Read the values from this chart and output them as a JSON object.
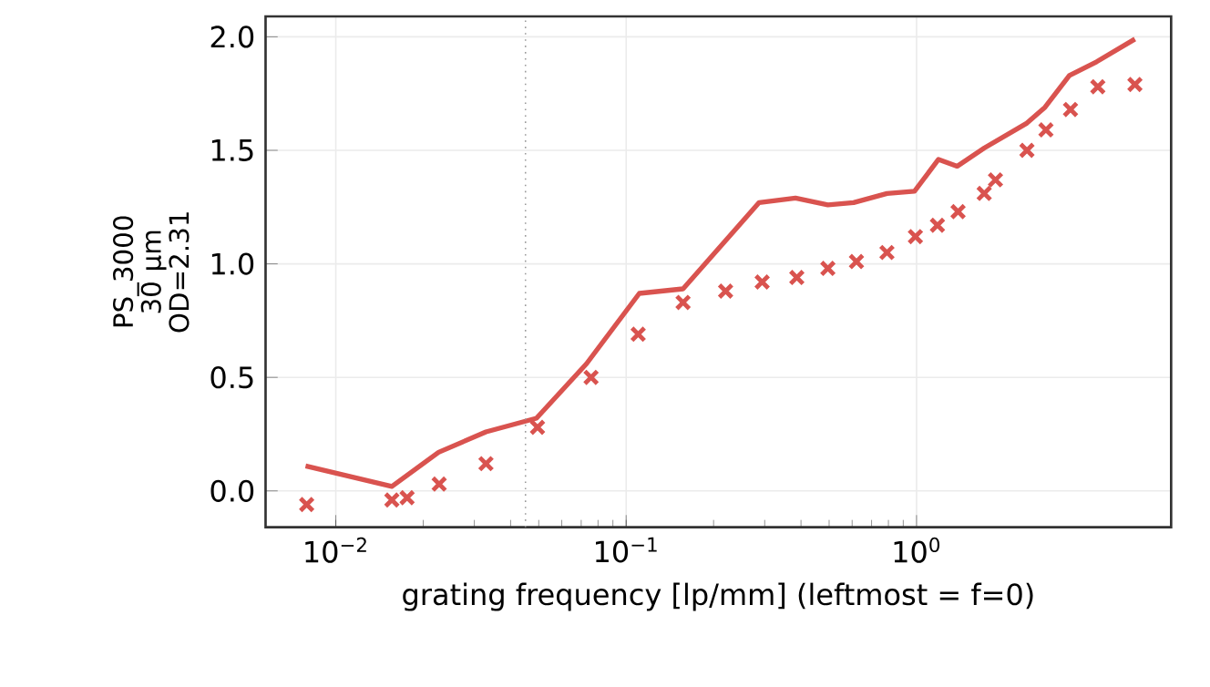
{
  "chart_data": {
    "type": "line",
    "xlabel": "grating frequency [lp/mm]  (leftmost = f=0)",
    "ylabel": "PS_3000 30 µm OD=2.31",
    "log": "x",
    "grid": true,
    "xlim": [
      0.00573,
      7.53
    ],
    "ylim": [
      -0.16,
      2.09
    ],
    "xticks": [
      {
        "value": 0.01,
        "label": "10$^{−2}$"
      },
      {
        "value": 0.1,
        "label": "10$^{−1}$"
      },
      {
        "value": 1,
        "label": "10$^{0}$"
      }
    ],
    "yticks": [
      {
        "value": 0,
        "label": "0.0"
      },
      {
        "value": 0.5,
        "label": "0.5"
      },
      {
        "value": 1,
        "label": "1.0"
      },
      {
        "value": 1.5,
        "label": "1.5"
      },
      {
        "value": 2,
        "label": "2.0"
      }
    ],
    "ref_lines": [
      {
        "axis": "x",
        "value": 0.045,
        "color": "#999999",
        "line_style": "dotted"
      }
    ],
    "series": [
      {
        "color": "#d9534f",
        "line_style": "solid",
        "marker": "none",
        "x": [
          0.00787,
          0.0156,
          0.0226,
          0.0329,
          0.0491,
          0.073,
          0.111,
          0.157,
          0.287,
          0.383,
          0.495,
          0.607,
          0.791,
          0.984,
          1.19,
          1.38,
          1.71,
          2.4,
          2.77,
          3.36,
          4.17,
          5.65
        ],
        "values": [
          0.11,
          0.02,
          0.17,
          0.26,
          0.32,
          0.56,
          0.87,
          0.89,
          1.27,
          1.29,
          1.26,
          1.27,
          1.31,
          1.32,
          1.46,
          1.43,
          1.51,
          1.62,
          1.69,
          1.83,
          1.89,
          1.99
        ]
      },
      {
        "type": "scatter",
        "color": "#d9534f",
        "marker": "cross",
        "x": [
          0.00794,
          0.0156,
          0.0176,
          0.0227,
          0.0329,
          0.0495,
          0.0757,
          0.11,
          0.157,
          0.22,
          0.294,
          0.387,
          0.495,
          0.621,
          0.791,
          0.991,
          1.18,
          1.39,
          1.71,
          1.87,
          2.4,
          2.79,
          3.39,
          4.21,
          5.65
        ],
        "values": [
          -0.06,
          -0.04,
          -0.03,
          0.03,
          0.12,
          0.28,
          0.5,
          0.69,
          0.83,
          0.88,
          0.92,
          0.94,
          0.98,
          1.01,
          1.05,
          1.12,
          1.17,
          1.23,
          1.31,
          1.37,
          1.5,
          1.59,
          1.68,
          1.78,
          1.79
        ]
      }
    ]
  }
}
